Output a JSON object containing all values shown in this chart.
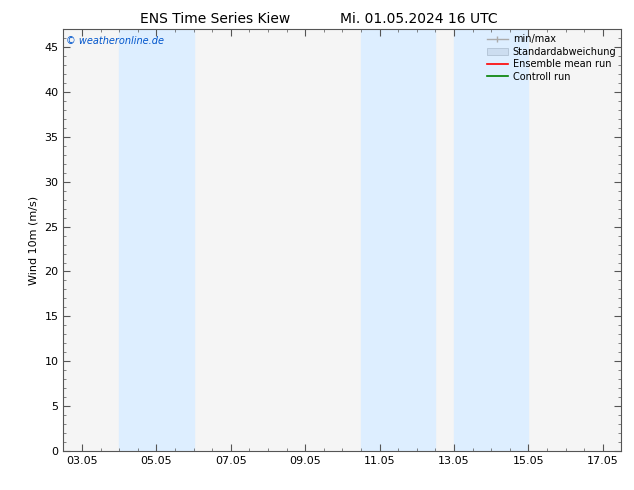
{
  "title_left": "ENS Time Series Kiew",
  "title_right": "Mi. 01.05.2024 16 UTC",
  "ylabel": "Wind 10m (m/s)",
  "watermark": "© weatheronline.de",
  "ylim": [
    0,
    47
  ],
  "yticks": [
    0,
    5,
    10,
    15,
    20,
    25,
    30,
    35,
    40,
    45
  ],
  "xtick_labels": [
    "03.05",
    "05.05",
    "07.05",
    "09.05",
    "11.05",
    "13.05",
    "15.05",
    "17.05"
  ],
  "xtick_positions": [
    0,
    2,
    4,
    6,
    8,
    10,
    12,
    14
  ],
  "xlim": [
    -0.5,
    14.5
  ],
  "shaded_regions": [
    {
      "x_start": 1.0,
      "x_end": 3.0,
      "color": "#ddeeff"
    },
    {
      "x_start": 7.5,
      "x_end": 9.5,
      "color": "#ddeeff"
    },
    {
      "x_start": 10.0,
      "x_end": 12.0,
      "color": "#ddeeff"
    }
  ],
  "background_color": "#ffffff",
  "plot_bg_color": "#f5f5f5",
  "legend_items": [
    {
      "label": "min/max",
      "color": "#aaaaaa",
      "style": "line_with_caps"
    },
    {
      "label": "Standardabweichung",
      "color": "#ccddf0",
      "style": "filled"
    },
    {
      "label": "Ensemble mean run",
      "color": "#ff0000",
      "style": "line"
    },
    {
      "label": "Controll run",
      "color": "#008000",
      "style": "line"
    }
  ],
  "watermark_color": "#0055cc",
  "title_fontsize": 10,
  "axis_fontsize": 8,
  "tick_fontsize": 8,
  "legend_fontsize": 7
}
